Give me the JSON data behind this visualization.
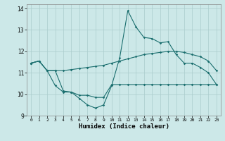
{
  "xlabel": "Humidex (Indice chaleur)",
  "bg_color": "#cce8e8",
  "grid_color": "#aacccc",
  "line_color": "#1a6e6e",
  "xlim": [
    -0.5,
    23.5
  ],
  "ylim": [
    9,
    14.2
  ],
  "yticks": [
    9,
    10,
    11,
    12,
    13,
    14
  ],
  "xticks": [
    0,
    1,
    2,
    3,
    4,
    5,
    6,
    7,
    8,
    9,
    10,
    11,
    12,
    13,
    14,
    15,
    16,
    17,
    18,
    19,
    20,
    21,
    22,
    23
  ],
  "line1_x": [
    0,
    1,
    2,
    3,
    4,
    5,
    6,
    7,
    8,
    9,
    10,
    11,
    12,
    13,
    14,
    15,
    16,
    17,
    18,
    19,
    20,
    21,
    22,
    23
  ],
  "line1_y": [
    11.45,
    11.55,
    11.1,
    11.1,
    11.1,
    11.15,
    11.2,
    11.25,
    11.3,
    11.35,
    11.45,
    11.55,
    11.65,
    11.75,
    11.85,
    11.9,
    11.95,
    12.0,
    12.0,
    11.95,
    11.85,
    11.75,
    11.55,
    11.1
  ],
  "line2_x": [
    0,
    1,
    2,
    3,
    4,
    5,
    6,
    7,
    8,
    9,
    10,
    11,
    12,
    13,
    14,
    15,
    16,
    17,
    18,
    19,
    20,
    21,
    22,
    23
  ],
  "line2_y": [
    11.45,
    11.55,
    11.1,
    11.1,
    10.15,
    10.1,
    9.8,
    9.5,
    9.35,
    9.5,
    10.4,
    11.7,
    13.9,
    13.15,
    12.65,
    12.6,
    12.4,
    12.45,
    11.85,
    11.45,
    11.45,
    11.25,
    11.0,
    10.45
  ],
  "line3_x": [
    0,
    1,
    2,
    3,
    4,
    5,
    6,
    7,
    8,
    9,
    10,
    11,
    12,
    13,
    14,
    15,
    16,
    17,
    18,
    19,
    20,
    21,
    22,
    23
  ],
  "line3_y": [
    11.45,
    11.55,
    11.1,
    10.4,
    10.1,
    10.1,
    9.95,
    9.95,
    9.85,
    9.85,
    10.45,
    10.45,
    10.45,
    10.45,
    10.45,
    10.45,
    10.45,
    10.45,
    10.45,
    10.45,
    10.45,
    10.45,
    10.45,
    10.45
  ]
}
